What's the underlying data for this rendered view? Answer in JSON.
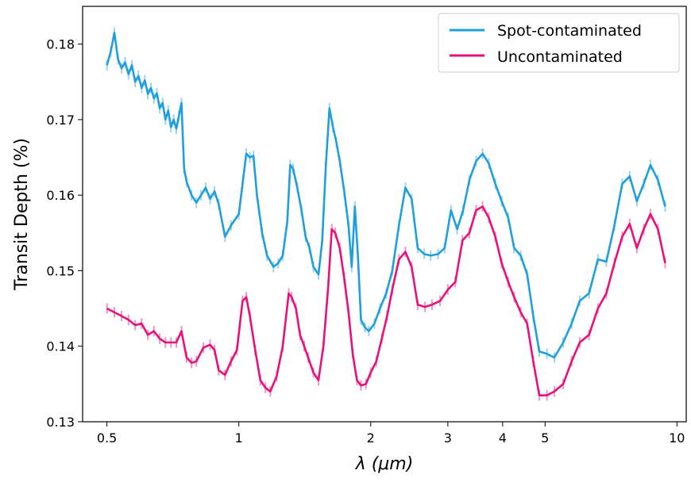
{
  "chart_data": {
    "type": "line",
    "title": "",
    "xlabel": "λ (μm)",
    "ylabel": "Transit Depth (%)",
    "xscale": "log",
    "xlim": [
      0.44,
      10.5
    ],
    "ylim": [
      0.13,
      0.185
    ],
    "xticks": [
      0.5,
      1,
      2,
      3,
      4,
      5,
      10
    ],
    "xtick_labels": [
      "0.5",
      "1",
      "2",
      "3",
      "4",
      "5",
      "10"
    ],
    "yticks": [
      0.13,
      0.14,
      0.15,
      0.16,
      0.17,
      0.18
    ],
    "ytick_labels": [
      "0.13",
      "0.14",
      "0.15",
      "0.16",
      "0.17",
      "0.18"
    ],
    "grid": false,
    "legend_position": "top-right",
    "series": [
      {
        "name": "Spot-contaminated",
        "color": "#1f9fdc",
        "error": 0.0007,
        "points": [
          [
            0.5,
            0.1772
          ],
          [
            0.51,
            0.179
          ],
          [
            0.52,
            0.1815
          ],
          [
            0.53,
            0.178
          ],
          [
            0.54,
            0.1768
          ],
          [
            0.55,
            0.1776
          ],
          [
            0.56,
            0.176
          ],
          [
            0.57,
            0.1772
          ],
          [
            0.58,
            0.175
          ],
          [
            0.59,
            0.1758
          ],
          [
            0.6,
            0.1742
          ],
          [
            0.61,
            0.1752
          ],
          [
            0.62,
            0.1734
          ],
          [
            0.63,
            0.1742
          ],
          [
            0.64,
            0.1728
          ],
          [
            0.65,
            0.1735
          ],
          [
            0.66,
            0.1715
          ],
          [
            0.67,
            0.1722
          ],
          [
            0.68,
            0.17
          ],
          [
            0.69,
            0.1712
          ],
          [
            0.7,
            0.169
          ],
          [
            0.71,
            0.17
          ],
          [
            0.72,
            0.1688
          ],
          [
            0.73,
            0.1705
          ],
          [
            0.74,
            0.1722
          ],
          [
            0.75,
            0.1635
          ],
          [
            0.76,
            0.1618
          ],
          [
            0.78,
            0.16
          ],
          [
            0.8,
            0.159
          ],
          [
            0.82,
            0.16
          ],
          [
            0.84,
            0.161
          ],
          [
            0.86,
            0.1595
          ],
          [
            0.88,
            0.1605
          ],
          [
            0.9,
            0.1588
          ],
          [
            0.93,
            0.1545
          ],
          [
            0.96,
            0.156
          ],
          [
            1.0,
            0.1575
          ],
          [
            1.02,
            0.1615
          ],
          [
            1.04,
            0.1655
          ],
          [
            1.06,
            0.165
          ],
          [
            1.08,
            0.1652
          ],
          [
            1.1,
            0.16
          ],
          [
            1.13,
            0.155
          ],
          [
            1.16,
            0.152
          ],
          [
            1.2,
            0.1505
          ],
          [
            1.23,
            0.151
          ],
          [
            1.26,
            0.152
          ],
          [
            1.29,
            0.1565
          ],
          [
            1.31,
            0.164
          ],
          [
            1.33,
            0.1635
          ],
          [
            1.36,
            0.161
          ],
          [
            1.39,
            0.158
          ],
          [
            1.42,
            0.1545
          ],
          [
            1.45,
            0.153
          ],
          [
            1.48,
            0.1505
          ],
          [
            1.52,
            0.1495
          ],
          [
            1.55,
            0.154
          ],
          [
            1.58,
            0.164
          ],
          [
            1.61,
            0.1715
          ],
          [
            1.64,
            0.169
          ],
          [
            1.67,
            0.167
          ],
          [
            1.7,
            0.1645
          ],
          [
            1.74,
            0.1605
          ],
          [
            1.78,
            0.156
          ],
          [
            1.81,
            0.1505
          ],
          [
            1.84,
            0.1585
          ],
          [
            1.87,
            0.152
          ],
          [
            1.9,
            0.1435
          ],
          [
            1.94,
            0.1425
          ],
          [
            1.98,
            0.142
          ],
          [
            2.04,
            0.143
          ],
          [
            2.1,
            0.145
          ],
          [
            2.17,
            0.147
          ],
          [
            2.24,
            0.15
          ],
          [
            2.32,
            0.156
          ],
          [
            2.4,
            0.161
          ],
          [
            2.48,
            0.1595
          ],
          [
            2.56,
            0.153
          ],
          [
            2.65,
            0.1522
          ],
          [
            2.74,
            0.152
          ],
          [
            2.85,
            0.1522
          ],
          [
            2.95,
            0.153
          ],
          [
            3.05,
            0.158
          ],
          [
            3.15,
            0.1555
          ],
          [
            3.25,
            0.158
          ],
          [
            3.36,
            0.162
          ],
          [
            3.48,
            0.1645
          ],
          [
            3.6,
            0.1655
          ],
          [
            3.72,
            0.1642
          ],
          [
            3.85,
            0.1615
          ],
          [
            3.98,
            0.1592
          ],
          [
            4.12,
            0.157
          ],
          [
            4.25,
            0.153
          ],
          [
            4.4,
            0.152
          ],
          [
            4.55,
            0.1495
          ],
          [
            4.7,
            0.144
          ],
          [
            4.85,
            0.1393
          ],
          [
            5.05,
            0.139
          ],
          [
            5.25,
            0.1385
          ],
          [
            5.5,
            0.1405
          ],
          [
            5.75,
            0.143
          ],
          [
            6.0,
            0.146
          ],
          [
            6.3,
            0.147
          ],
          [
            6.6,
            0.1515
          ],
          [
            6.9,
            0.1512
          ],
          [
            7.2,
            0.156
          ],
          [
            7.5,
            0.1615
          ],
          [
            7.8,
            0.1625
          ],
          [
            8.1,
            0.1592
          ],
          [
            8.4,
            0.1615
          ],
          [
            8.7,
            0.164
          ],
          [
            9.05,
            0.162
          ],
          [
            9.4,
            0.1585
          ],
          [
            9.75,
            0.1525
          ],
          [
            10.0,
            0.151
          ],
          [
            10.5,
            0.151
          ]
        ]
      },
      {
        "name": "Uncontaminated",
        "color": "#e8117a",
        "error": 0.0007,
        "points": [
          [
            0.5,
            0.145
          ],
          [
            0.52,
            0.1445
          ],
          [
            0.54,
            0.144
          ],
          [
            0.56,
            0.1435
          ],
          [
            0.58,
            0.1428
          ],
          [
            0.6,
            0.143
          ],
          [
            0.62,
            0.1415
          ],
          [
            0.64,
            0.142
          ],
          [
            0.66,
            0.141
          ],
          [
            0.68,
            0.1405
          ],
          [
            0.7,
            0.1405
          ],
          [
            0.72,
            0.1405
          ],
          [
            0.74,
            0.142
          ],
          [
            0.76,
            0.1385
          ],
          [
            0.78,
            0.1378
          ],
          [
            0.8,
            0.138
          ],
          [
            0.83,
            0.1398
          ],
          [
            0.86,
            0.1402
          ],
          [
            0.88,
            0.1395
          ],
          [
            0.9,
            0.1368
          ],
          [
            0.93,
            0.1362
          ],
          [
            0.96,
            0.138
          ],
          [
            0.99,
            0.1395
          ],
          [
            1.02,
            0.146
          ],
          [
            1.04,
            0.1465
          ],
          [
            1.06,
            0.144
          ],
          [
            1.09,
            0.1395
          ],
          [
            1.12,
            0.1355
          ],
          [
            1.15,
            0.1345
          ],
          [
            1.18,
            0.134
          ],
          [
            1.22,
            0.136
          ],
          [
            1.26,
            0.14
          ],
          [
            1.3,
            0.147
          ],
          [
            1.32,
            0.1465
          ],
          [
            1.35,
            0.145
          ],
          [
            1.38,
            0.1415
          ],
          [
            1.41,
            0.14
          ],
          [
            1.44,
            0.1385
          ],
          [
            1.48,
            0.1365
          ],
          [
            1.52,
            0.1355
          ],
          [
            1.56,
            0.14
          ],
          [
            1.6,
            0.148
          ],
          [
            1.63,
            0.1555
          ],
          [
            1.66,
            0.155
          ],
          [
            1.7,
            0.153
          ],
          [
            1.74,
            0.149
          ],
          [
            1.78,
            0.1445
          ],
          [
            1.82,
            0.139
          ],
          [
            1.86,
            0.1355
          ],
          [
            1.9,
            0.1348
          ],
          [
            1.95,
            0.135
          ],
          [
            2.0,
            0.1365
          ],
          [
            2.06,
            0.138
          ],
          [
            2.12,
            0.141
          ],
          [
            2.18,
            0.144
          ],
          [
            2.24,
            0.1475
          ],
          [
            2.32,
            0.1515
          ],
          [
            2.4,
            0.1525
          ],
          [
            2.48,
            0.1505
          ],
          [
            2.56,
            0.1455
          ],
          [
            2.66,
            0.1452
          ],
          [
            2.76,
            0.1455
          ],
          [
            2.88,
            0.146
          ],
          [
            3.0,
            0.1475
          ],
          [
            3.12,
            0.1485
          ],
          [
            3.24,
            0.154
          ],
          [
            3.36,
            0.155
          ],
          [
            3.48,
            0.158
          ],
          [
            3.6,
            0.1585
          ],
          [
            3.72,
            0.157
          ],
          [
            3.85,
            0.1545
          ],
          [
            3.98,
            0.151
          ],
          [
            4.12,
            0.1485
          ],
          [
            4.25,
            0.1465
          ],
          [
            4.4,
            0.1445
          ],
          [
            4.55,
            0.143
          ],
          [
            4.7,
            0.138
          ],
          [
            4.85,
            0.1335
          ],
          [
            5.05,
            0.1335
          ],
          [
            5.25,
            0.134
          ],
          [
            5.5,
            0.135
          ],
          [
            5.75,
            0.138
          ],
          [
            6.0,
            0.1405
          ],
          [
            6.3,
            0.1415
          ],
          [
            6.6,
            0.145
          ],
          [
            6.9,
            0.147
          ],
          [
            7.2,
            0.151
          ],
          [
            7.5,
            0.1545
          ],
          [
            7.8,
            0.1562
          ],
          [
            8.1,
            0.153
          ],
          [
            8.4,
            0.1555
          ],
          [
            8.7,
            0.1575
          ],
          [
            9.05,
            0.1555
          ],
          [
            9.4,
            0.151
          ],
          [
            9.75,
            0.147
          ],
          [
            10.0,
            0.1455
          ],
          [
            10.5,
            0.1458
          ]
        ]
      }
    ]
  }
}
